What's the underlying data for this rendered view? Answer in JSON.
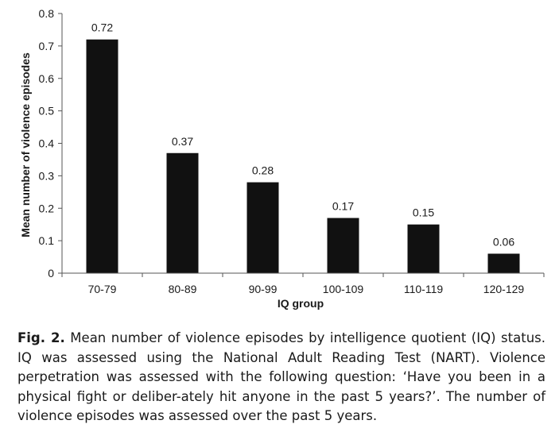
{
  "chart_data": {
    "type": "bar",
    "categories": [
      "70-79",
      "80-89",
      "90-99",
      "100-109",
      "110-119",
      "120-129"
    ],
    "values": [
      0.72,
      0.37,
      0.28,
      0.17,
      0.15,
      0.06
    ],
    "data_labels": [
      "0.72",
      "0.37",
      "0.28",
      "0.17",
      "0.15",
      "0.06"
    ],
    "title": "",
    "xlabel": "IQ group",
    "ylabel": "Mean number of violence episodes",
    "ylim": [
      0,
      0.8
    ],
    "yticks": [
      0,
      0.1,
      0.2,
      0.3,
      0.4,
      0.5,
      0.6,
      0.7,
      0.8
    ],
    "ytick_labels": [
      "0",
      "0.1",
      "0.2",
      "0.3",
      "0.4",
      "0.5",
      "0.6",
      "0.7",
      "0.8"
    ],
    "grid": false,
    "bar_color": "#111111"
  },
  "caption": {
    "label": "Fig. 2.",
    "text": " Mean number of violence episodes by intelligence quotient (IQ) status. IQ was assessed using the National Adult Reading Test (NART). Violence perpetration was assessed with the following question: ‘Have you been in a physical fight or deliber-ately hit anyone in the past 5 years?’. The number of violence episodes was assessed over the past 5 years."
  }
}
